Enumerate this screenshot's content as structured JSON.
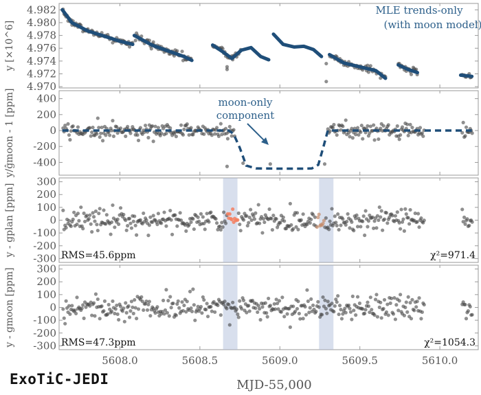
{
  "logo_text": "ExoTiC-JEDI",
  "chart_data": {
    "type": "scatter",
    "xlabel": "MJD-55,000",
    "xlim": [
      5607.62,
      5610.24
    ],
    "xticks": [
      "5608.0",
      "5608.5",
      "5609.0",
      "5609.5",
      "5610.0"
    ],
    "xtick_values": [
      5608.0,
      5608.5,
      5609.0,
      5609.5,
      5610.0
    ],
    "gap_x": [
      5610.04,
      5610.14
    ],
    "panels": [
      {
        "ylabel": "y [×10^6]",
        "ylim": [
          4.9698,
          4.983
        ],
        "yticks": [
          "4.982",
          "4.980",
          "4.978",
          "4.976",
          "4.974",
          "4.972",
          "4.970"
        ],
        "ytick_values": [
          4.982,
          4.98,
          4.978,
          4.976,
          4.974,
          4.972,
          4.97
        ],
        "annotation": [
          "MLE trends-only",
          "(with moon model)"
        ],
        "series": [
          {
            "label": "MLE trends-only (with moon model)",
            "segments": [
              {
                "x": [
                  5607.64,
                  5607.7,
                  5607.8,
                  5607.9,
                  5608.0,
                  5608.08
                ],
                "y": [
                  4.982,
                  4.98,
                  4.9787,
                  4.9779,
                  4.9771,
                  4.9766
                ]
              },
              {
                "x": [
                  5608.09,
                  5608.2,
                  5608.3,
                  5608.4,
                  5608.45
                ],
                "y": [
                  4.978,
                  4.9765,
                  4.9756,
                  4.9747,
                  4.9741
                ]
              },
              {
                "x": [
                  5608.58,
                  5608.64,
                  5608.7,
                  5608.76,
                  5608.82,
                  5608.88,
                  5608.93
                ],
                "y": [
                  4.9765,
                  4.9755,
                  4.9744,
                  4.9757,
                  4.9761,
                  4.9747,
                  4.9742
                ]
              },
              {
                "x": [
                  5608.96,
                  5609.02,
                  5609.09,
                  5609.15,
                  5609.21,
                  5609.26
                ],
                "y": [
                  4.9782,
                  4.9766,
                  4.9762,
                  4.9763,
                  4.9758,
                  4.9747
                ]
              },
              {
                "x": [
                  5609.31,
                  5609.4,
                  5609.5,
                  5609.6,
                  5609.66
                ],
                "y": [
                  4.975,
                  4.9737,
                  4.9731,
                  4.9725,
                  4.9713
                ]
              },
              {
                "x": [
                  5609.74,
                  5609.8,
                  5609.86
                ],
                "y": [
                  4.9734,
                  4.9727,
                  4.9722
                ]
              },
              {
                "x": [
                  5610.13,
                  5610.2
                ],
                "y": [
                  4.9718,
                  4.9716
                ]
              }
            ]
          }
        ]
      },
      {
        "ylabel": "y/ĝmoon - 1 [ppm]",
        "ylim": [
          -560,
          500
        ],
        "yticks": [
          "400",
          "200",
          "0",
          "-200",
          "-400"
        ],
        "ytick_values": [
          400,
          200,
          0,
          -200,
          -400
        ],
        "annotation": [
          "moon-only",
          "component"
        ],
        "scatter_sigma": 48,
        "moon_model": {
          "x": [
            5607.64,
            5608.68,
            5608.71,
            5608.75,
            5608.79,
            5608.85,
            5609.0,
            5609.15,
            5609.2,
            5609.24,
            5609.27,
            5609.3,
            5610.2
          ],
          "y": [
            0,
            0,
            -40,
            -220,
            -440,
            -475,
            -478,
            -478,
            -475,
            -430,
            -220,
            0,
            0
          ]
        }
      },
      {
        "ylabel": "y - gplan [ppm]",
        "ylim": [
          -330,
          330
        ],
        "yticks": [
          "300",
          "200",
          "100",
          "0",
          "-100",
          "-200",
          "-300"
        ],
        "ytick_values": [
          300,
          200,
          100,
          0,
          -100,
          -200,
          -300
        ],
        "rms_label": "RMS=45.6ppm",
        "chi2_label": "χ²=971.4",
        "scatter_sigma": 46,
        "transit_bands": [
          [
            5608.645,
            5608.735
          ],
          [
            5609.245,
            5609.335
          ]
        ],
        "highlight_color": "#f47f5f"
      },
      {
        "ylabel": "y - gmoon [ppm]",
        "ylim": [
          -330,
          330
        ],
        "yticks": [
          "300",
          "200",
          "100",
          "0",
          "-100",
          "-200",
          "-300"
        ],
        "ytick_values": [
          300,
          200,
          100,
          0,
          -100,
          -200,
          -300
        ],
        "rms_label": "RMS=47.3ppm",
        "chi2_label": "χ²=1054.3",
        "scatter_sigma": 47,
        "transit_bands": [
          [
            5608.645,
            5608.735
          ],
          [
            5609.245,
            5609.335
          ]
        ]
      }
    ],
    "colors": {
      "model_line": "#1f4e79",
      "points": "#444444",
      "band": "#a9b8d8",
      "annotation": "#2c5f8a",
      "frame": "#999999"
    }
  }
}
